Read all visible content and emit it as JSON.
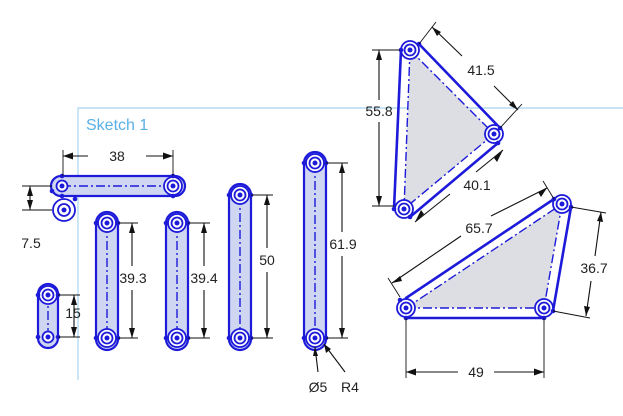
{
  "sketch": {
    "name": "Sketch 1"
  },
  "dimensions": {
    "slot_top_length": "38",
    "slot_top_offset": "7.5",
    "slot_small": "15",
    "slot_2": "39.3",
    "slot_3": "39.4",
    "slot_4": "50",
    "slot_5": "61.9",
    "diameter": "Ø5",
    "radius": "R4",
    "tri_top_left": "55.8",
    "tri_top_right": "41.5",
    "tri_top_inner": "40.1",
    "trap_diag": "65.7",
    "trap_right": "36.7",
    "trap_bottom": "49"
  },
  "colors": {
    "sketch_blue": "#1d1ad9",
    "sketch_fill": "#dcdee3",
    "frame": "#a8d4ee",
    "label": "#5ab0e6"
  }
}
